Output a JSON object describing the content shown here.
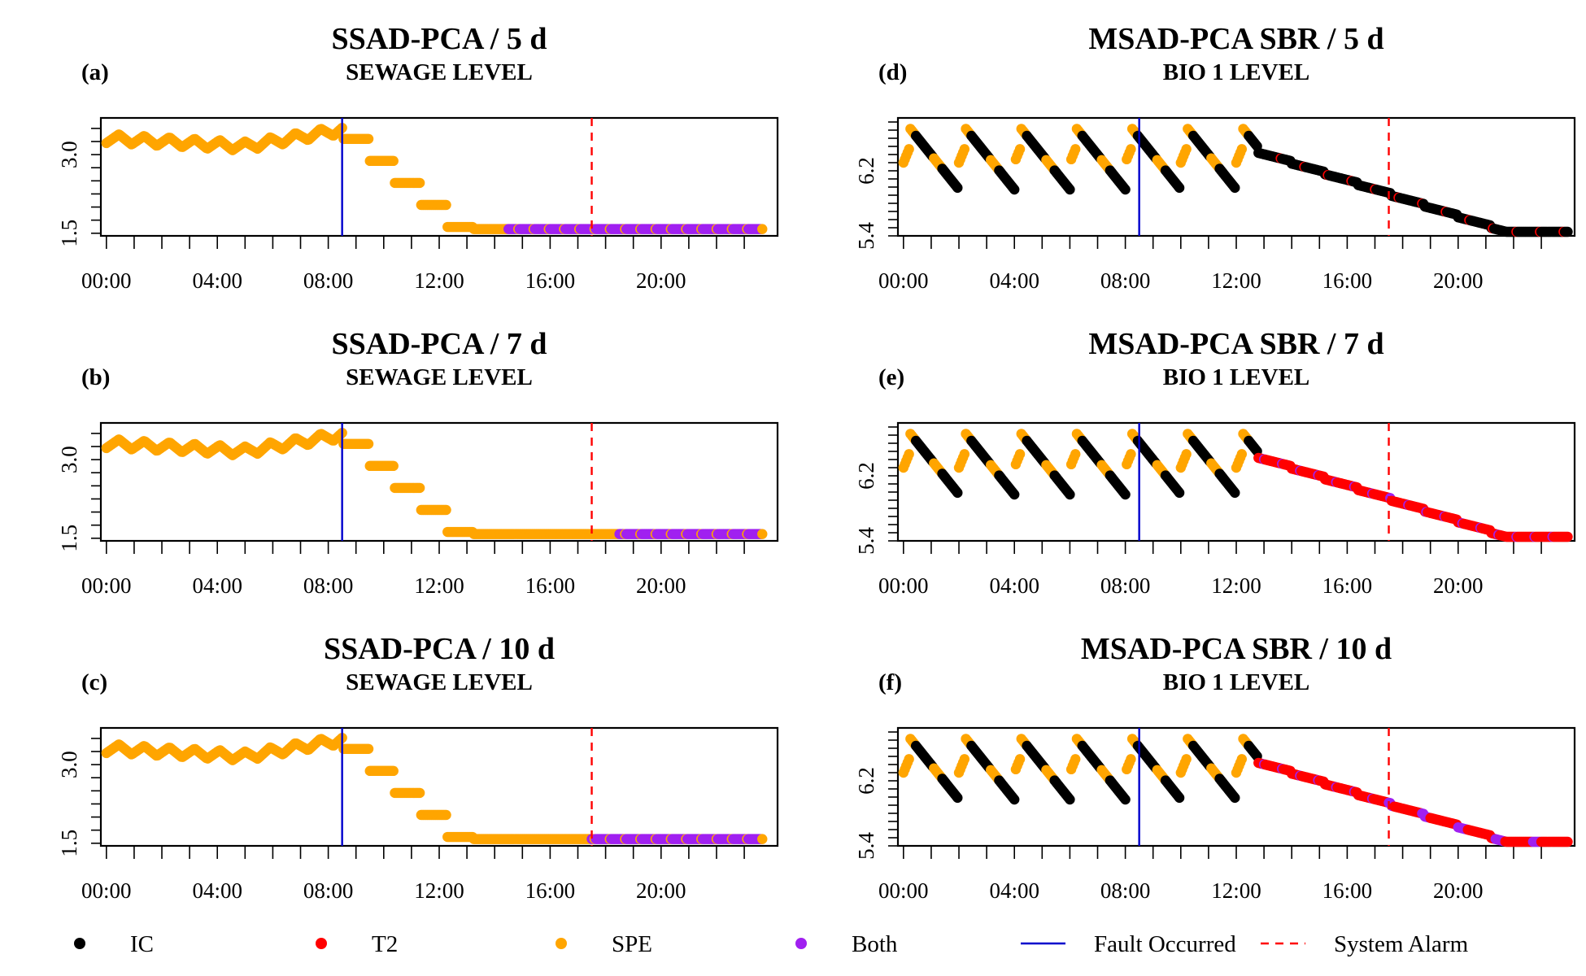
{
  "colors": {
    "IC": "#000000",
    "T2": "#ff0000",
    "SPE": "#ffa500",
    "Both": "#a020f0",
    "fault": "#0000cc",
    "alarm": "#ff0000"
  },
  "legend": {
    "items": [
      {
        "key": "IC",
        "label": "IC",
        "kind": "point"
      },
      {
        "key": "T2",
        "label": "T2",
        "kind": "point"
      },
      {
        "key": "SPE",
        "label": "SPE",
        "kind": "point"
      },
      {
        "key": "Both",
        "label": "Both",
        "kind": "point"
      },
      {
        "key": "fault",
        "label": "Fault Occurred",
        "kind": "solid-line"
      },
      {
        "key": "alarm",
        "label": "System Alarm",
        "kind": "dashed-line"
      }
    ]
  },
  "chart_data": [
    {
      "letter": "(a)",
      "title": "SSAD-PCA / 5 d",
      "subtitle": "SEWAGE LEVEL",
      "type": "scatter",
      "process": "sewage",
      "xlim": [
        -0.2,
        24.2
      ],
      "ylim": [
        1.45,
        3.7
      ],
      "yticks": [
        1.5,
        3.0
      ],
      "ytick_labels": [
        "1.5",
        "3.0"
      ],
      "yminor": 0.25,
      "xtick_labels": [
        "00:00",
        "04:00",
        "08:00",
        "12:00",
        "16:00",
        "20:00"
      ],
      "fault_time": 8.5,
      "alarm_time": 17.5,
      "status_segments": [
        [
          0,
          14.5,
          "SPE"
        ],
        [
          14.5,
          23.7,
          "Both"
        ]
      ]
    },
    {
      "letter": "(b)",
      "title": "SSAD-PCA / 7 d",
      "subtitle": "SEWAGE LEVEL",
      "type": "scatter",
      "process": "sewage",
      "xlim": [
        -0.2,
        24.2
      ],
      "ylim": [
        1.45,
        3.7
      ],
      "yticks": [
        1.5,
        3.0
      ],
      "ytick_labels": [
        "1.5",
        "3.0"
      ],
      "yminor": 0.25,
      "xtick_labels": [
        "00:00",
        "04:00",
        "08:00",
        "12:00",
        "16:00",
        "20:00"
      ],
      "fault_time": 8.5,
      "alarm_time": 17.5,
      "status_segments": [
        [
          0,
          18.5,
          "SPE"
        ],
        [
          18.5,
          23.7,
          "Both"
        ]
      ]
    },
    {
      "letter": "(c)",
      "title": "SSAD-PCA / 10 d",
      "subtitle": "SEWAGE LEVEL",
      "type": "scatter",
      "process": "sewage",
      "xlim": [
        -0.2,
        24.2
      ],
      "ylim": [
        1.45,
        3.7
      ],
      "yticks": [
        1.5,
        3.0
      ],
      "ytick_labels": [
        "1.5",
        "3.0"
      ],
      "yminor": 0.25,
      "xtick_labels": [
        "00:00",
        "04:00",
        "08:00",
        "12:00",
        "16:00",
        "20:00"
      ],
      "fault_time": 8.5,
      "alarm_time": 17.5,
      "status_segments": [
        [
          0,
          17.5,
          "SPE"
        ],
        [
          17.5,
          23.7,
          "Both"
        ]
      ]
    },
    {
      "letter": "(d)",
      "title": "MSAD-PCA SBR / 5 d",
      "subtitle": "BIO 1 LEVEL",
      "type": "scatter",
      "process": "bio",
      "xlim": [
        -0.2,
        24.2
      ],
      "ylim": [
        5.4,
        6.85
      ],
      "yticks": [
        5.4,
        6.2
      ],
      "ytick_labels": [
        "5.4",
        "6.2"
      ],
      "yminor": 0.1,
      "xtick_labels": [
        "00:00",
        "04:00",
        "08:00",
        "12:00",
        "16:00",
        "20:00"
      ],
      "fault_time": 8.5,
      "alarm_time": 17.5,
      "status_segments": [
        [
          0,
          12.8,
          "IC+SPE"
        ],
        [
          12.8,
          24,
          "IC"
        ]
      ]
    },
    {
      "letter": "(e)",
      "title": "MSAD-PCA SBR / 7 d",
      "subtitle": "BIO 1 LEVEL",
      "type": "scatter",
      "process": "bio",
      "xlim": [
        -0.2,
        24.2
      ],
      "ylim": [
        5.4,
        6.85
      ],
      "yticks": [
        5.4,
        6.2
      ],
      "ytick_labels": [
        "5.4",
        "6.2"
      ],
      "yminor": 0.1,
      "xtick_labels": [
        "00:00",
        "04:00",
        "08:00",
        "12:00",
        "16:00",
        "20:00"
      ],
      "fault_time": 8.5,
      "alarm_time": 17.5,
      "status_segments": [
        [
          0,
          12.8,
          "IC+SPE"
        ],
        [
          12.8,
          24,
          "T2"
        ]
      ]
    },
    {
      "letter": "(f)",
      "title": "MSAD-PCA SBR / 10 d",
      "subtitle": "BIO 1 LEVEL",
      "type": "scatter",
      "process": "bio",
      "xlim": [
        -0.2,
        24.2
      ],
      "ylim": [
        5.4,
        6.85
      ],
      "yticks": [
        5.4,
        6.2
      ],
      "ytick_labels": [
        "5.4",
        "6.2"
      ],
      "yminor": 0.1,
      "xtick_labels": [
        "00:00",
        "04:00",
        "08:00",
        "12:00",
        "16:00",
        "20:00"
      ],
      "fault_time": 8.5,
      "alarm_time": 17.5,
      "status_segments": [
        [
          0,
          12.8,
          "IC+SPE"
        ],
        [
          12.8,
          17.5,
          "T2"
        ],
        [
          17.5,
          24,
          "T2+Both"
        ]
      ]
    }
  ]
}
